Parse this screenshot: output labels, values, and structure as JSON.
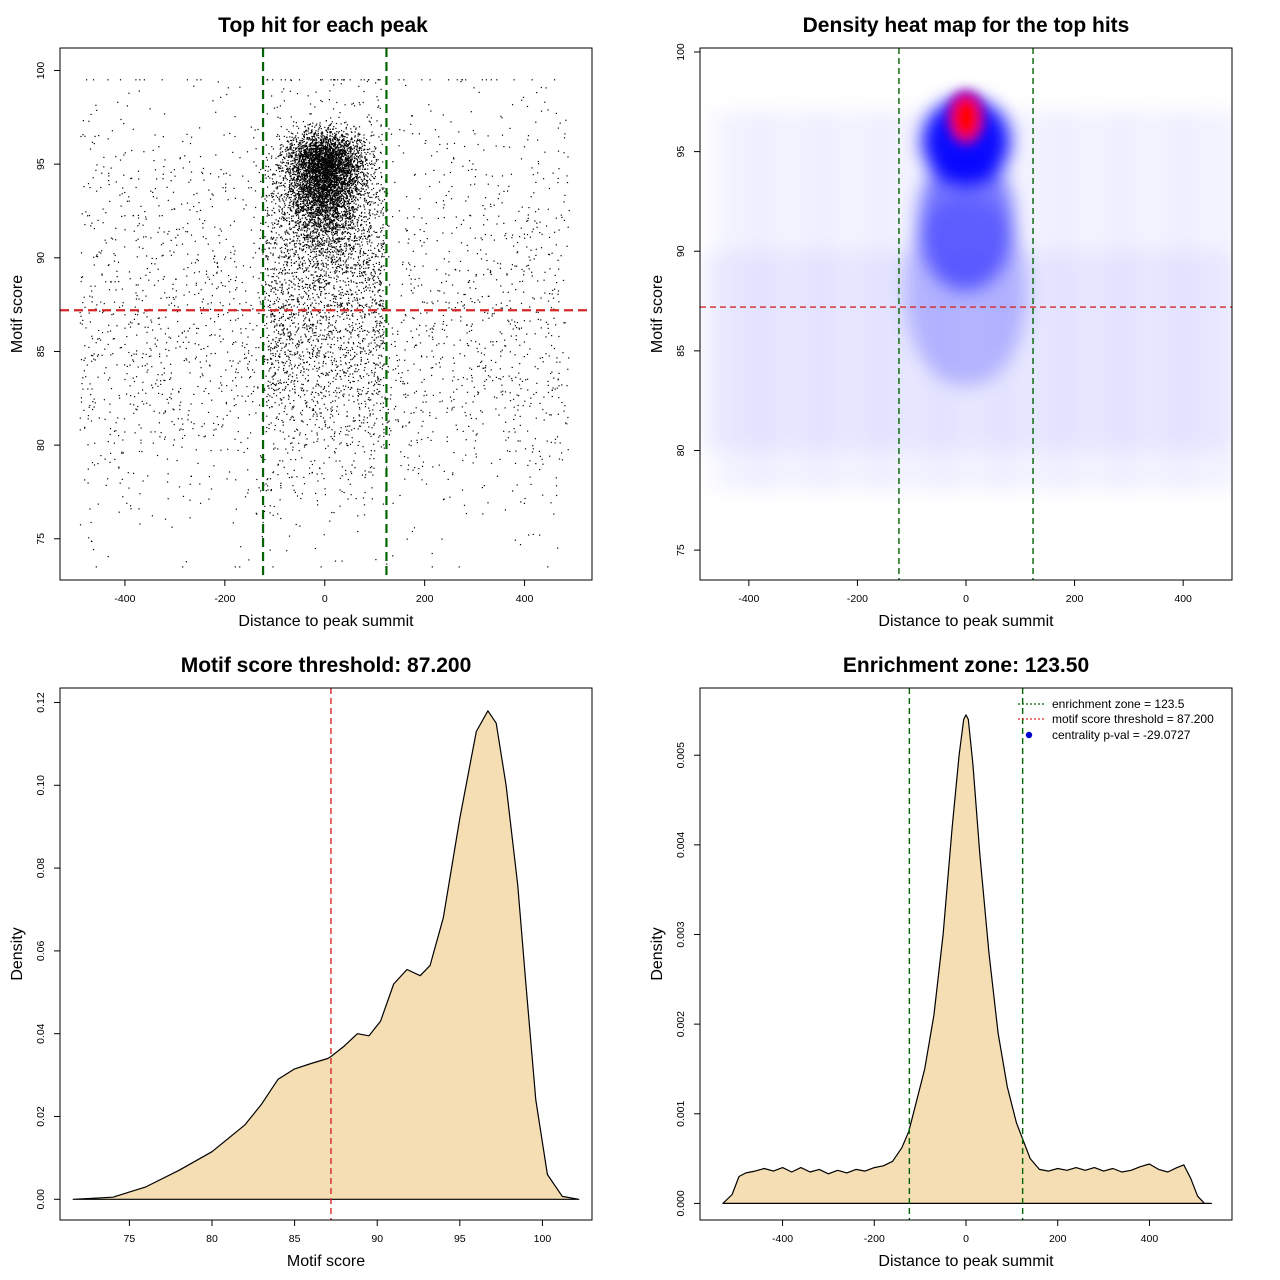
{
  "chart_data": [
    {
      "id": "scatter",
      "type": "scatter",
      "title": "Top hit for each peak",
      "xlabel": "Distance to peak summit",
      "ylabel": "Motif score",
      "xlim": [
        -530,
        535
      ],
      "ylim": [
        72.8,
        101.2
      ],
      "xticks": [
        -400,
        -200,
        0,
        200,
        400
      ],
      "xtick_labels": [
        "-400",
        "-200",
        "0",
        "200",
        "400"
      ],
      "yticks": [
        75,
        80,
        85,
        90,
        95,
        100
      ],
      "ytick_labels": [
        "75",
        "80",
        "85",
        "90",
        "95",
        "100"
      ],
      "vlines": [
        -123.5,
        123.5
      ],
      "hline": 87.2,
      "point_color": "#000000",
      "vline_color": "#006400",
      "hline_color": "#d62728"
    },
    {
      "id": "heatmap",
      "type": "heatmap",
      "title": "Density heat map for the top hits",
      "xlabel": "Distance to peak summit",
      "ylabel": "Motif score",
      "xlim": [
        -490,
        490
      ],
      "ylim": [
        73.5,
        100.2
      ],
      "xticks": [
        -400,
        -200,
        0,
        200,
        400
      ],
      "xtick_labels": [
        "-400",
        "-200",
        "0",
        "200",
        "400"
      ],
      "yticks": [
        75,
        80,
        85,
        90,
        95,
        100
      ],
      "ytick_labels": [
        "75",
        "80",
        "85",
        "90",
        "95",
        "100"
      ],
      "vlines": [
        -123.5,
        123.5
      ],
      "hline": 87.2,
      "hotspot": {
        "x": 0,
        "y": 96.7
      },
      "colors": [
        "#ffffff",
        "#0000ff",
        "#ff0000"
      ],
      "vline_color": "#006400",
      "hline_color": "#d62728"
    },
    {
      "id": "score_density",
      "type": "area",
      "title": "Motif score threshold: 87.200",
      "xlabel": "Motif score",
      "ylabel": "Density",
      "xlim": [
        70.8,
        103.0
      ],
      "ylim": [
        -0.005,
        0.1235
      ],
      "xticks": [
        75,
        80,
        85,
        90,
        95,
        100
      ],
      "xtick_labels": [
        "75",
        "80",
        "85",
        "90",
        "95",
        "100"
      ],
      "yticks": [
        0.0,
        0.02,
        0.04,
        0.06,
        0.08,
        0.1,
        0.12
      ],
      "ytick_labels": [
        "0.00",
        "0.02",
        "0.04",
        "0.06",
        "0.08",
        "0.10",
        "0.12"
      ],
      "vlines": [
        87.2
      ],
      "fill_color": "#f5deb3",
      "vline_color": "#d62728",
      "x": [
        71.6,
        74,
        76,
        78,
        80,
        82,
        83,
        84,
        85,
        86,
        87,
        87.2,
        88,
        88.8,
        89.5,
        90.2,
        91,
        91.8,
        92.6,
        93.2,
        94,
        95,
        96,
        96.7,
        97.2,
        97.8,
        98.5,
        99,
        99.6,
        100.3,
        101.2,
        102.2
      ],
      "y": [
        0.0,
        0.0005,
        0.003,
        0.007,
        0.0115,
        0.018,
        0.023,
        0.029,
        0.0315,
        0.0328,
        0.034,
        0.0345,
        0.037,
        0.04,
        0.0395,
        0.043,
        0.052,
        0.0555,
        0.054,
        0.0565,
        0.068,
        0.092,
        0.113,
        0.118,
        0.115,
        0.1,
        0.076,
        0.052,
        0.024,
        0.006,
        0.0007,
        0.0
      ]
    },
    {
      "id": "distance_density",
      "type": "area",
      "title": "Enrichment zone: 123.50",
      "xlabel": "Distance to peak summit",
      "ylabel": "Density",
      "xlim": [
        -580,
        580
      ],
      "ylim": [
        -0.000185,
        0.00575
      ],
      "xticks": [
        -400,
        -200,
        0,
        200,
        400
      ],
      "xtick_labels": [
        "-400",
        "-200",
        "0",
        "200",
        "400"
      ],
      "yticks": [
        0.0,
        0.001,
        0.002,
        0.003,
        0.004,
        0.005
      ],
      "ytick_labels": [
        "0.000",
        "0.001",
        "0.002",
        "0.003",
        "0.004",
        "0.005"
      ],
      "vlines": [
        -123.5,
        123.5
      ],
      "fill_color": "#f5deb3",
      "vline_color": "#006400",
      "x": [
        -530,
        -510,
        -495,
        -480,
        -460,
        -440,
        -420,
        -400,
        -380,
        -360,
        -340,
        -320,
        -300,
        -280,
        -260,
        -240,
        -220,
        -200,
        -180,
        -160,
        -140,
        -125,
        -110,
        -90,
        -70,
        -50,
        -30,
        -15,
        -5,
        0,
        5,
        15,
        30,
        50,
        70,
        90,
        110,
        125,
        140,
        160,
        180,
        200,
        220,
        240,
        260,
        280,
        300,
        320,
        340,
        360,
        380,
        400,
        420,
        440,
        460,
        475,
        490,
        505,
        520,
        535
      ],
      "y": [
        0.0,
        0.0001,
        0.0003,
        0.00034,
        0.00036,
        0.00039,
        0.00036,
        0.0004,
        0.00035,
        0.0004,
        0.00035,
        0.00038,
        0.00033,
        0.00037,
        0.00034,
        0.00038,
        0.00036,
        0.0004,
        0.00042,
        0.00047,
        0.00062,
        0.0008,
        0.0011,
        0.0015,
        0.0021,
        0.003,
        0.0042,
        0.005,
        0.0054,
        0.00545,
        0.0054,
        0.0049,
        0.0039,
        0.0028,
        0.0019,
        0.0013,
        0.0009,
        0.0007,
        0.0005,
        0.00038,
        0.00036,
        0.00039,
        0.00037,
        0.0004,
        0.00037,
        0.0004,
        0.00036,
        0.00039,
        0.00035,
        0.00037,
        0.00041,
        0.00044,
        0.00038,
        0.00035,
        0.0004,
        0.00043,
        0.00028,
        8e-05,
        0.0,
        0.0
      ]
    }
  ],
  "legend": {
    "items": [
      {
        "label": "enrichment zone = 123.5",
        "color": "#006400",
        "symbol": "line"
      },
      {
        "label": "motif score threshold = 87.200",
        "color": "#d62728",
        "symbol": "line"
      },
      {
        "label": "centrality p-val = -29.0727",
        "color": "#0000cc",
        "symbol": "point"
      }
    ]
  }
}
